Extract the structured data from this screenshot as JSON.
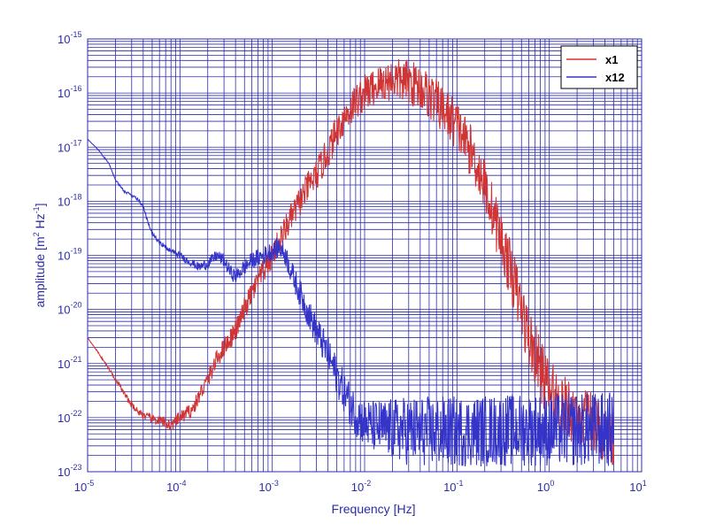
{
  "chart_data": {
    "type": "line",
    "title": "",
    "xlabel": "Frequency  [Hz]",
    "ylabel_parts": [
      "amplitude  [m",
      "2",
      " Hz",
      "-1",
      "]"
    ],
    "x_scale": "log",
    "y_scale": "log",
    "xlim": [
      1e-05,
      10
    ],
    "ylim": [
      1e-23,
      1e-15
    ],
    "x_ticks": [
      {
        "base": "10",
        "exp": "-5"
      },
      {
        "base": "10",
        "exp": "-4"
      },
      {
        "base": "10",
        "exp": "-3"
      },
      {
        "base": "10",
        "exp": "-2"
      },
      {
        "base": "10",
        "exp": "-1"
      },
      {
        "base": "10",
        "exp": "0"
      },
      {
        "base": "10",
        "exp": "1"
      }
    ],
    "y_ticks": [
      {
        "base": "10",
        "exp": "-15"
      },
      {
        "base": "10",
        "exp": "-16"
      },
      {
        "base": "10",
        "exp": "-17"
      },
      {
        "base": "10",
        "exp": "-18"
      },
      {
        "base": "10",
        "exp": "-19"
      },
      {
        "base": "10",
        "exp": "-20"
      },
      {
        "base": "10",
        "exp": "-21"
      },
      {
        "base": "10",
        "exp": "-22"
      },
      {
        "base": "10",
        "exp": "-23"
      }
    ],
    "grid": true,
    "legend_position": "top-right",
    "series": [
      {
        "name": "x1",
        "color": "#d03434",
        "noise_band": [
          {
            "x": 0.001,
            "dy": 0.25
          },
          {
            "x": 0.01,
            "dy": 0.35
          },
          {
            "x": 0.05,
            "dy": 0.45
          },
          {
            "x": 0.2,
            "dy": 0.5
          },
          {
            "x": 0.8,
            "dy": 0.6
          },
          {
            "x": 5,
            "dy": 0.55
          }
        ],
        "points": [
          [
            1e-05,
            3e-21
          ],
          [
            1.3e-05,
            1.6e-21
          ],
          [
            1.7e-05,
            8e-22
          ],
          [
            2.2e-05,
            4e-22
          ],
          [
            2.8e-05,
            2e-22
          ],
          [
            3.5e-05,
            1.3e-22
          ],
          [
            4.5e-05,
            1e-22
          ],
          [
            5.5e-05,
            9e-23
          ],
          [
            7e-05,
            8e-23
          ],
          [
            8e-05,
            7e-23
          ],
          [
            0.0001,
            1e-22
          ],
          [
            0.00012,
            1.2e-22
          ],
          [
            0.00014,
            1.5e-22
          ],
          [
            0.00017,
            3e-22
          ],
          [
            0.0002,
            5e-22
          ],
          [
            0.00025,
            1.2e-21
          ],
          [
            0.0003,
            2e-21
          ],
          [
            0.0004,
            4e-21
          ],
          [
            0.0005,
            1e-20
          ],
          [
            0.0006,
            2e-20
          ],
          [
            0.0008,
            5e-20
          ],
          [
            0.001,
            1e-19
          ],
          [
            0.0013,
            2.5e-19
          ],
          [
            0.0016,
            5e-19
          ],
          [
            0.002,
            1e-18
          ],
          [
            0.0025,
            2e-18
          ],
          [
            0.003,
            3e-18
          ],
          [
            0.004,
            8e-18
          ],
          [
            0.005,
            2e-17
          ],
          [
            0.006,
            3.5e-17
          ],
          [
            0.008,
            7e-17
          ],
          [
            0.01,
            1e-16
          ],
          [
            0.015,
            1.5e-16
          ],
          [
            0.02,
            1.8e-16
          ],
          [
            0.03,
            1.6e-16
          ],
          [
            0.04,
            1.3e-16
          ],
          [
            0.05,
            9e-17
          ],
          [
            0.07,
            5e-17
          ],
          [
            0.1,
            2.5e-17
          ],
          [
            0.15,
            7e-18
          ],
          [
            0.2,
            2e-18
          ],
          [
            0.3,
            2e-19
          ],
          [
            0.4,
            4e-20
          ],
          [
            0.5,
            1e-20
          ],
          [
            0.6,
            3e-21
          ],
          [
            0.8,
            8e-22
          ],
          [
            1,
            3e-22
          ],
          [
            1.5,
            1.5e-22
          ],
          [
            2,
            1.1e-22
          ],
          [
            3,
            8e-23
          ],
          [
            4,
            5e-23
          ],
          [
            5,
            4e-23
          ]
        ]
      },
      {
        "name": "x12",
        "color": "#3434c8",
        "noise_band": [
          {
            "x": 8e-05,
            "dy": 0.05
          },
          {
            "x": 0.0003,
            "dy": 0.12
          },
          {
            "x": 0.001,
            "dy": 0.18
          },
          {
            "x": 0.003,
            "dy": 0.3
          },
          {
            "x": 0.01,
            "dy": 0.45
          },
          {
            "x": 0.03,
            "dy": 0.65
          },
          {
            "x": 5,
            "dy": 0.7
          }
        ],
        "points": [
          [
            1e-05,
            1.4e-17
          ],
          [
            1.3e-05,
            9e-18
          ],
          [
            1.7e-05,
            5e-18
          ],
          [
            2e-05,
            2.5e-18
          ],
          [
            2.5e-05,
            1.5e-18
          ],
          [
            3e-05,
            1.3e-18
          ],
          [
            3.5e-05,
            1.1e-18
          ],
          [
            4e-05,
            8e-19
          ],
          [
            4.5e-05,
            4e-19
          ],
          [
            5e-05,
            2.5e-19
          ],
          [
            6e-05,
            1.8e-19
          ],
          [
            7e-05,
            1.4e-19
          ],
          [
            8e-05,
            1.2e-19
          ],
          [
            0.0001,
            1e-19
          ],
          [
            0.00012,
            8e-20
          ],
          [
            0.00014,
            7e-20
          ],
          [
            0.00016,
            6e-20
          ],
          [
            0.0002,
            7e-20
          ],
          [
            0.00025,
            1e-19
          ],
          [
            0.0003,
            8e-20
          ],
          [
            0.00035,
            5e-20
          ],
          [
            0.0004,
            4e-20
          ],
          [
            0.0005,
            6e-20
          ],
          [
            0.0006,
            8e-20
          ],
          [
            0.0008,
            1e-19
          ],
          [
            0.001,
            1.2e-19
          ],
          [
            0.0012,
            1.4e-19
          ],
          [
            0.0014,
            1e-19
          ],
          [
            0.0016,
            5e-20
          ],
          [
            0.002,
            2e-20
          ],
          [
            0.0025,
            8e-21
          ],
          [
            0.003,
            4e-21
          ],
          [
            0.004,
            1.5e-21
          ],
          [
            0.005,
            6e-22
          ],
          [
            0.006,
            3e-22
          ],
          [
            0.007,
            1.8e-22
          ],
          [
            0.008,
            1.2e-22
          ],
          [
            0.01,
            8e-23
          ],
          [
            0.012,
            7e-23
          ],
          [
            0.02,
            6e-23
          ],
          [
            0.05,
            5.5e-23
          ],
          [
            0.1,
            5.5e-23
          ],
          [
            0.5,
            6e-23
          ],
          [
            1,
            6e-23
          ],
          [
            2,
            6e-23
          ],
          [
            5,
            6e-23
          ]
        ]
      }
    ]
  }
}
